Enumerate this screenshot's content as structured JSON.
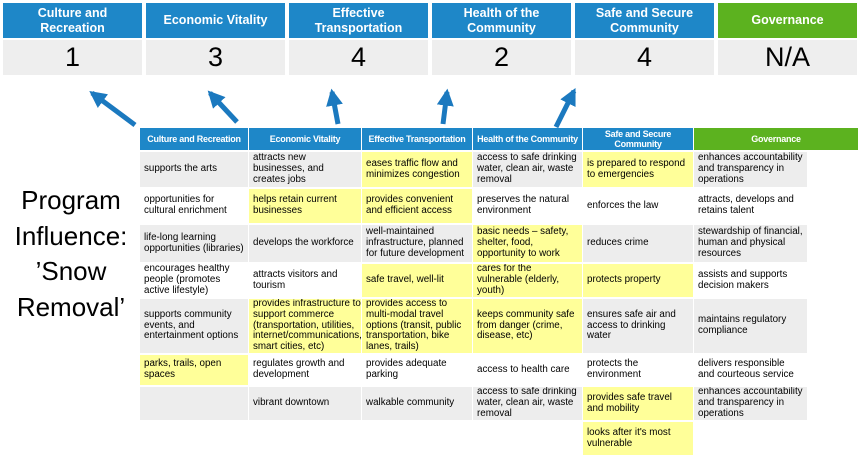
{
  "scoreboard": {
    "columns": [
      {
        "label": "Culture and Recreation",
        "score": "1",
        "accent": "blue"
      },
      {
        "label": "Economic Vitality",
        "score": "3",
        "accent": "blue"
      },
      {
        "label": "Effective Transportation",
        "score": "4",
        "accent": "blue"
      },
      {
        "label": "Health of the Community",
        "score": "2",
        "accent": "blue"
      },
      {
        "label": "Safe and Secure Community",
        "score": "4",
        "accent": "blue"
      },
      {
        "label": "Governance",
        "score": "N/A",
        "accent": "green"
      }
    ]
  },
  "program_label": {
    "lines": [
      "Program",
      "Influence:",
      "’Snow",
      "Removal’"
    ]
  },
  "arrows": {
    "columns_with_arrows": [
      "Culture and Recreation",
      "Economic Vitality",
      "Effective Transportation",
      "Health of the Community",
      "Safe and Secure Community"
    ]
  },
  "matrix": {
    "columns": [
      {
        "header": "Culture and Recreation",
        "accent": "blue",
        "cells": [
          {
            "text": "supports the arts",
            "highlighted": false
          },
          {
            "text": "opportunities for cultural enrichment",
            "highlighted": false
          },
          {
            "text": "life-long learning opportunities (libraries)",
            "highlighted": false
          },
          {
            "text": "encourages healthy people (promotes active lifestyle)",
            "highlighted": false
          },
          {
            "text": "supports community events, and entertainment options",
            "highlighted": false
          },
          {
            "text": "parks, trails, open spaces",
            "highlighted": true
          },
          {
            "text": "",
            "highlighted": false
          },
          {
            "text": "",
            "highlighted": false
          }
        ]
      },
      {
        "header": "Economic Vitality",
        "accent": "blue",
        "cells": [
          {
            "text": "attracts new businesses, and creates jobs",
            "highlighted": false
          },
          {
            "text": "helps retain current businesses",
            "highlighted": true
          },
          {
            "text": "develops the workforce",
            "highlighted": false
          },
          {
            "text": "attracts visitors and tourism",
            "highlighted": false
          },
          {
            "text": "provides infrastructure to support commerce (transportation, utilities, internet/communications, smart cities, etc)",
            "highlighted": true
          },
          {
            "text": "regulates growth and development",
            "highlighted": false
          },
          {
            "text": "vibrant downtown",
            "highlighted": false
          },
          {
            "text": "",
            "highlighted": false
          }
        ]
      },
      {
        "header": "Effective Transportation",
        "accent": "blue",
        "cells": [
          {
            "text": "eases traffic flow and minimizes congestion",
            "highlighted": true
          },
          {
            "text": "provides convenient and efficient access",
            "highlighted": true
          },
          {
            "text": "well-maintained infrastructure, planned for future development",
            "highlighted": false
          },
          {
            "text": "safe travel, well-lit",
            "highlighted": true
          },
          {
            "text": "provides access to multi-modal travel options (transit, public transportation, bike lanes, trails)",
            "highlighted": true
          },
          {
            "text": "provides adequate parking",
            "highlighted": false
          },
          {
            "text": "walkable community",
            "highlighted": false
          },
          {
            "text": "",
            "highlighted": false
          }
        ]
      },
      {
        "header": "Health of the Community",
        "accent": "blue",
        "cells": [
          {
            "text": "access to safe drinking water, clean air, waste removal",
            "highlighted": false
          },
          {
            "text": "preserves the natural environment",
            "highlighted": false
          },
          {
            "text": "basic needs – safety, shelter, food, opportunity to work",
            "highlighted": true
          },
          {
            "text": "cares for the vulnerable (elderly, youth)",
            "highlighted": true
          },
          {
            "text": "keeps community safe from danger (crime, disease, etc)",
            "highlighted": true
          },
          {
            "text": "access to health care",
            "highlighted": false
          },
          {
            "text": "access to safe drinking water, clean air, waste removal",
            "highlighted": false
          },
          {
            "text": "",
            "highlighted": false
          }
        ]
      },
      {
        "header": "Safe and Secure Community",
        "accent": "blue",
        "cells": [
          {
            "text": "is prepared to respond to emergencies",
            "highlighted": true
          },
          {
            "text": "enforces the law",
            "highlighted": false
          },
          {
            "text": "reduces crime",
            "highlighted": false
          },
          {
            "text": "protects property",
            "highlighted": true
          },
          {
            "text": "ensures safe air and access to drinking water",
            "highlighted": false
          },
          {
            "text": "protects the environment",
            "highlighted": false
          },
          {
            "text": "provides safe travel and mobility",
            "highlighted": true
          },
          {
            "text": "looks after it's most vulnerable",
            "highlighted": true
          }
        ]
      },
      {
        "header": "Governance",
        "accent": "green",
        "cells": [
          {
            "text": "enhances accountability and transparency in operations",
            "highlighted": false
          },
          {
            "text": "attracts, develops and retains talent",
            "highlighted": false
          },
          {
            "text": "stewardship of financial, human and physical resources",
            "highlighted": false
          },
          {
            "text": "assists and supports decision makers",
            "highlighted": false
          },
          {
            "text": "maintains regulatory compliance",
            "highlighted": false
          },
          {
            "text": "delivers responsible and courteous service",
            "highlighted": false
          },
          {
            "text": "enhances accountability and transparency in operations",
            "highlighted": false
          },
          {
            "text": "",
            "highlighted": false
          }
        ]
      }
    ]
  },
  "colors": {
    "header_blue": "#1E87C8",
    "header_green": "#5CB21F",
    "highlight_yellow": "#FFFF99",
    "row_band_gray": "#EDEDED",
    "score_row_gray": "#EEEEEE",
    "arrow_blue": "#1B79BF"
  }
}
